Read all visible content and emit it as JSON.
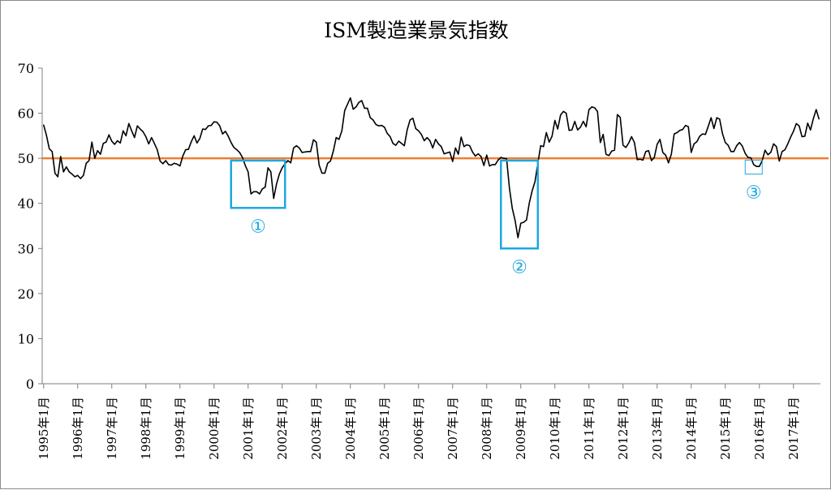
{
  "chart_data": {
    "type": "line",
    "title": "ISM製造業景気指数",
    "xlabel": "",
    "ylabel": "",
    "ylim": [
      0,
      70
    ],
    "yticks": [
      0,
      10,
      20,
      30,
      40,
      50,
      60,
      70
    ],
    "x_start": "1995-01",
    "x_end": "2017-10",
    "x_tick_labels": [
      "1995年1月",
      "1996年1月",
      "1997年1月",
      "1998年1月",
      "1999年1月",
      "2000年1月",
      "2001年1月",
      "2002年1月",
      "2003年1月",
      "2004年1月",
      "2005年1月",
      "2006年1月",
      "2007年1月",
      "2008年1月",
      "2009年1月",
      "2010年1月",
      "2011年1月",
      "2012年1月",
      "2013年1月",
      "2014年1月",
      "2015年1月",
      "2016年1月",
      "2017年1月"
    ],
    "grid": false,
    "legend": "none",
    "reference_line": {
      "value": 50,
      "color": "#ed7d31"
    },
    "line_color": "#000000",
    "series": [
      {
        "values": [
          57.4,
          55.1,
          52.1,
          51.5,
          46.7,
          45.9,
          50.4,
          47.0,
          48.1,
          47.0,
          46.5,
          45.9,
          46.2,
          45.5,
          46.2,
          48.9,
          49.5,
          53.6,
          50.0,
          51.7,
          50.9,
          53.3,
          53.6,
          55.2,
          53.8,
          53.1,
          53.9,
          53.4,
          56.1,
          55.0,
          57.7,
          56.1,
          54.6,
          57.2,
          56.5,
          55.9,
          54.8,
          53.2,
          54.6,
          53.3,
          51.9,
          49.4,
          48.8,
          49.5,
          48.6,
          48.5,
          48.9,
          48.7,
          48.3,
          50.5,
          51.9,
          52.0,
          53.7,
          55.0,
          53.4,
          54.4,
          56.5,
          56.4,
          57.2,
          57.3,
          58.1,
          58.0,
          57.2,
          55.4,
          56.0,
          54.9,
          53.5,
          52.4,
          51.9,
          51.3,
          50.2,
          48.4,
          47.0,
          42.1,
          42.6,
          42.6,
          42.1,
          43.2,
          43.6,
          47.9,
          47.0,
          41.1,
          44.3,
          46.5,
          47.9,
          48.8,
          49.5,
          49.0,
          52.3,
          52.8,
          52.3,
          51.3,
          51.4,
          51.5,
          51.5,
          54.1,
          53.6,
          48.5,
          46.7,
          46.7,
          48.9,
          49.4,
          51.6,
          54.6,
          54.2,
          56.1,
          60.6,
          62.0,
          63.4,
          60.9,
          61.4,
          62.4,
          62.8,
          61.1,
          61.1,
          59.0,
          58.5,
          57.5,
          57.2,
          57.3,
          56.9,
          55.5,
          54.8,
          53.3,
          52.9,
          53.8,
          53.3,
          52.8,
          56.3,
          58.5,
          58.9,
          56.6,
          56.1,
          55.3,
          53.9,
          54.6,
          53.9,
          52.3,
          54.2,
          53.2,
          52.6,
          51.0,
          51.2,
          51.4,
          49.3,
          52.3,
          50.9,
          54.7,
          52.6,
          53.0,
          52.8,
          51.4,
          50.5,
          51.0,
          50.4,
          48.4,
          50.7,
          48.3,
          48.6,
          48.6,
          49.6,
          50.2,
          50.0,
          49.9,
          43.4,
          38.9,
          36.2,
          32.4,
          35.6,
          35.8,
          36.3,
          40.1,
          42.8,
          44.8,
          48.9,
          52.8,
          52.6,
          55.7,
          53.6,
          54.9,
          58.4,
          56.5,
          59.6,
          60.4,
          60.0,
          56.2,
          56.3,
          58.2,
          56.3,
          56.9,
          58.2,
          57.0,
          60.8,
          61.4,
          61.2,
          60.4,
          53.5,
          55.3,
          50.9,
          50.6,
          51.6,
          51.8,
          59.7,
          59.1,
          52.9,
          52.4,
          53.4,
          54.8,
          53.5,
          49.7,
          49.8,
          49.6,
          51.5,
          51.7,
          49.5,
          50.2,
          53.1,
          54.2,
          51.3,
          50.7,
          49.0,
          50.9,
          55.4,
          55.7,
          56.2,
          56.4,
          57.3,
          57.0,
          51.3,
          53.2,
          53.7,
          54.9,
          55.4,
          55.3,
          57.1,
          59.0,
          56.6,
          59.0,
          58.7,
          55.5,
          53.5,
          52.9,
          51.5,
          51.5,
          52.8,
          53.5,
          52.7,
          51.1,
          50.2,
          50.1,
          48.6,
          48.2,
          48.2,
          49.5,
          51.8,
          50.8,
          51.3,
          53.2,
          52.6,
          49.4,
          51.5,
          51.9,
          53.2,
          54.7,
          56.0,
          57.7,
          57.2,
          54.8,
          54.9,
          57.8,
          56.3,
          58.8,
          60.8,
          58.7
        ]
      }
    ]
  },
  "annotations": [
    {
      "label": "①",
      "from": "2000-07",
      "to": "2002-02",
      "range": [
        39,
        49.5
      ],
      "color": "#1ea7e1"
    },
    {
      "label": "②",
      "from": "2008-06",
      "to": "2009-07",
      "range": [
        30,
        49.5
      ],
      "color": "#1ea7e1"
    },
    {
      "label": "③",
      "from": "2015-08",
      "to": "2016-02",
      "range": [
        46.5,
        49.6
      ],
      "color": "#1ea7e1"
    }
  ]
}
